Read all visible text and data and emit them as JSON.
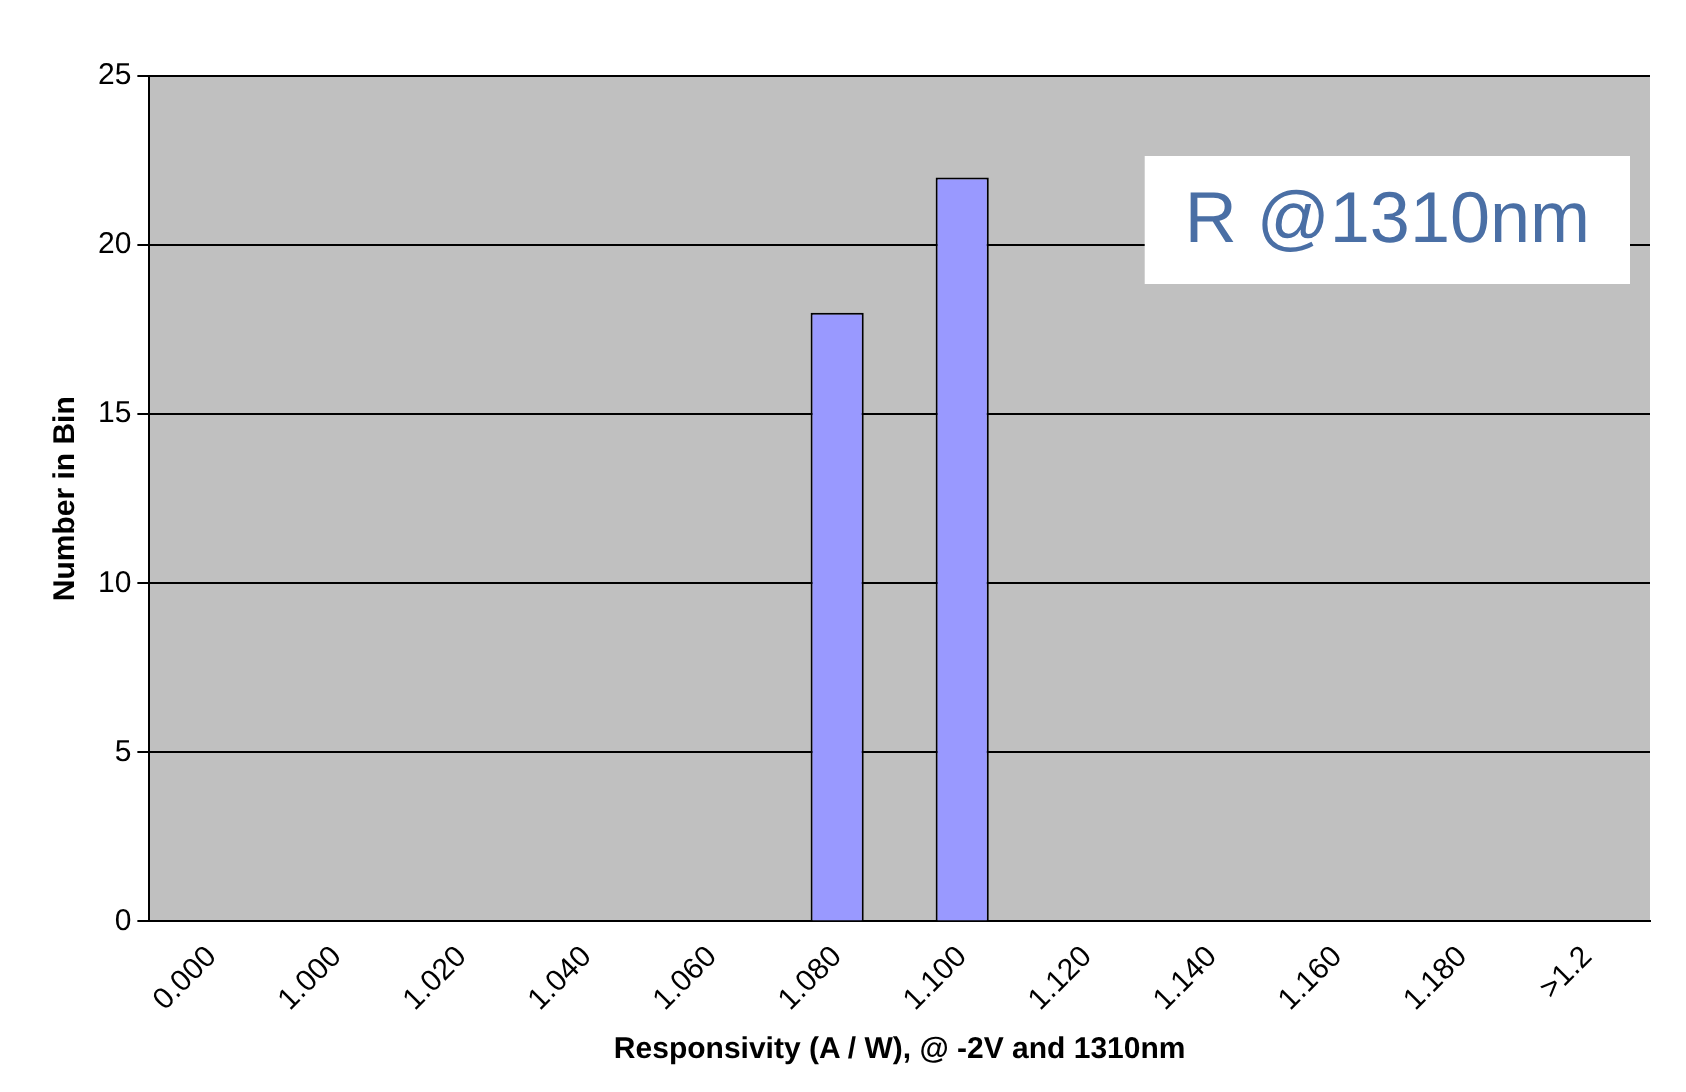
{
  "chart_data": {
    "type": "bar",
    "xlabel": "Responsivity (A / W), @ -2V and 1310nm",
    "ylabel": "Number in Bin",
    "categories": [
      "0.000",
      "1.000",
      "1.020",
      "1.040",
      "1.060",
      "1.080",
      "1.100",
      "1.120",
      "1.140",
      "1.160",
      "1.180",
      ">1.2"
    ],
    "values": [
      0,
      0,
      0,
      0,
      0,
      18,
      22,
      0,
      0,
      0,
      0,
      0
    ],
    "color": "#9999ff",
    "ylim": [
      0,
      25
    ],
    "yticks": [
      0,
      5,
      10,
      15,
      20,
      25
    ],
    "grid": "y",
    "legend": false,
    "annotations": [
      "R @1310nm"
    ]
  }
}
